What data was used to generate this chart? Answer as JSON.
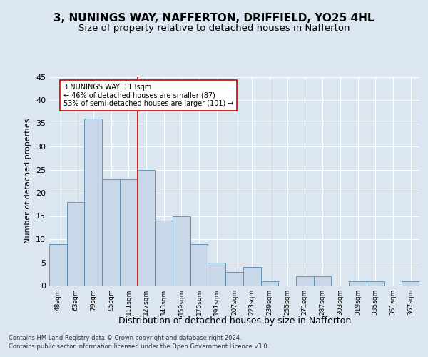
{
  "title1": "3, NUNINGS WAY, NAFFERTON, DRIFFIELD, YO25 4HL",
  "title2": "Size of property relative to detached houses in Nafferton",
  "xlabel": "Distribution of detached houses by size in Nafferton",
  "ylabel": "Number of detached properties",
  "bins": [
    "48sqm",
    "63sqm",
    "79sqm",
    "95sqm",
    "111sqm",
    "127sqm",
    "143sqm",
    "159sqm",
    "175sqm",
    "191sqm",
    "207sqm",
    "223sqm",
    "239sqm",
    "255sqm",
    "271sqm",
    "287sqm",
    "303sqm",
    "319sqm",
    "335sqm",
    "351sqm",
    "367sqm"
  ],
  "values": [
    9,
    18,
    36,
    23,
    23,
    25,
    14,
    15,
    9,
    5,
    3,
    4,
    1,
    0,
    2,
    2,
    0,
    1,
    1,
    0,
    1
  ],
  "bar_color": "#c8d8e8",
  "bar_edge_color": "#5588aa",
  "bar_width": 1.0,
  "ylim": [
    0,
    45
  ],
  "yticks": [
    0,
    5,
    10,
    15,
    20,
    25,
    30,
    35,
    40,
    45
  ],
  "vline_color": "#cc0000",
  "annotation_text": "3 NUNINGS WAY: 113sqm\n← 46% of detached houses are smaller (87)\n53% of semi-detached houses are larger (101) →",
  "annotation_box_color": "#ffffff",
  "annotation_box_edge": "#cc0000",
  "bg_color": "#dce6f0",
  "plot_bg": "#dce6f0",
  "footer1": "Contains HM Land Registry data © Crown copyright and database right 2024.",
  "footer2": "Contains public sector information licensed under the Open Government Licence v3.0.",
  "title1_fontsize": 11,
  "title2_fontsize": 9.5,
  "xlabel_fontsize": 9,
  "ylabel_fontsize": 8
}
